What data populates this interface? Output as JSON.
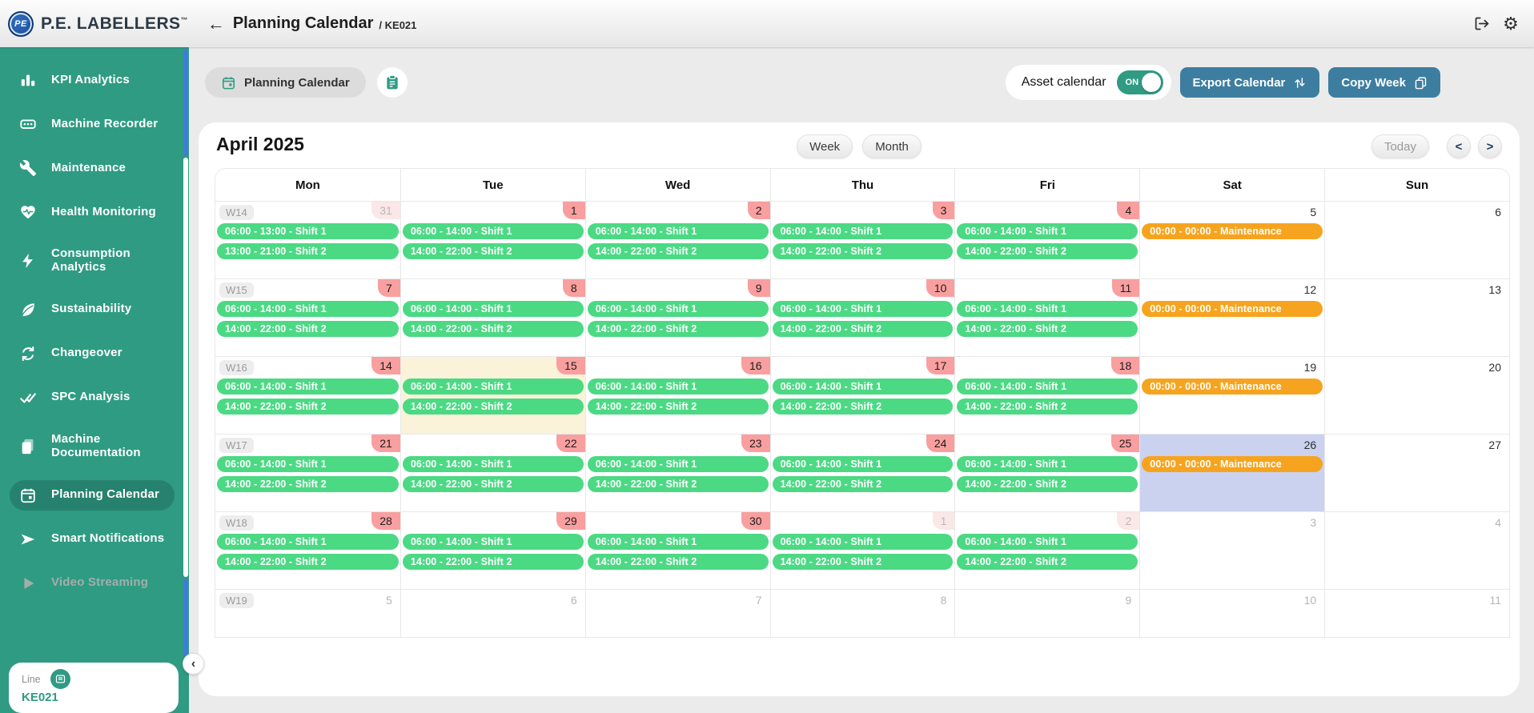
{
  "topbar": {
    "logo_text": "PE",
    "brand": "P.E. LABELLERS",
    "trademark": "™",
    "back_arrow": "←",
    "title": "Planning Calendar",
    "machine_code": "/ KE021"
  },
  "sidebar": {
    "items": [
      {
        "label": "KPI Analytics",
        "icon": "bar-chart"
      },
      {
        "label": "Machine Recorder",
        "icon": "recorder"
      },
      {
        "label": "Maintenance",
        "icon": "wrench"
      },
      {
        "label": "Health Monitoring",
        "icon": "heart-pulse"
      },
      {
        "label": "Consumption Analytics",
        "icon": "bolt"
      },
      {
        "label": "Sustainability",
        "icon": "leaf"
      },
      {
        "label": "Changeover",
        "icon": "cycle"
      },
      {
        "label": "SPC Analysis",
        "icon": "double-check"
      },
      {
        "label": "Machine Documentation",
        "icon": "documents"
      },
      {
        "label": "Planning Calendar",
        "icon": "calendar",
        "active": true
      },
      {
        "label": "Smart Notifications",
        "icon": "send"
      },
      {
        "label": "Video Streaming",
        "icon": "play",
        "disabled": true
      }
    ],
    "collapse_arrow": "‹",
    "line_card": {
      "label": "Line",
      "value": "KE021",
      "icon": "list"
    }
  },
  "toolbar": {
    "tab_label": "Planning Calendar",
    "asset_calendar_label": "Asset calendar",
    "toggle_state": "ON",
    "export_label": "Export Calendar",
    "copy_week_label": "Copy Week"
  },
  "calendar": {
    "title": "April 2025",
    "week_label": "Week",
    "month_label": "Month",
    "today_label": "Today",
    "prev_label": "<",
    "next_label": ">",
    "day_headers": [
      "Mon",
      "Tue",
      "Wed",
      "Thu",
      "Fri",
      "Sat",
      "Sun"
    ],
    "weeks": [
      {
        "label": "W14",
        "days": [
          {
            "num": "31",
            "badge": "faded",
            "events": [
              {
                "label": "06:00 - 13:00 - Shift 1",
                "type": "shift"
              },
              {
                "label": "13:00 - 21:00 - Shift 2",
                "type": "shift"
              }
            ]
          },
          {
            "num": "1",
            "badge": "red",
            "events": [
              {
                "label": "06:00 - 14:00 - Shift 1",
                "type": "shift"
              },
              {
                "label": "14:00 - 22:00 - Shift 2",
                "type": "shift"
              }
            ]
          },
          {
            "num": "2",
            "badge": "red",
            "events": [
              {
                "label": "06:00 - 14:00 - Shift 1",
                "type": "shift"
              },
              {
                "label": "14:00 - 22:00 - Shift 2",
                "type": "shift"
              }
            ]
          },
          {
            "num": "3",
            "badge": "red",
            "events": [
              {
                "label": "06:00 - 14:00 - Shift 1",
                "type": "shift"
              },
              {
                "label": "14:00 - 22:00 - Shift 2",
                "type": "shift"
              }
            ]
          },
          {
            "num": "4",
            "badge": "red",
            "events": [
              {
                "label": "06:00 - 14:00 - Shift 1",
                "type": "shift"
              },
              {
                "label": "14:00 - 22:00 - Shift 2",
                "type": "shift"
              }
            ]
          },
          {
            "num": "5",
            "badge": "plain",
            "events": [
              {
                "label": "00:00 - 00:00 - Maintenance",
                "type": "maintenance"
              }
            ]
          },
          {
            "num": "6",
            "badge": "plain",
            "events": []
          }
        ]
      },
      {
        "label": "W15",
        "days": [
          {
            "num": "7",
            "badge": "red",
            "events": [
              {
                "label": "06:00 - 14:00 - Shift 1",
                "type": "shift"
              },
              {
                "label": "14:00 - 22:00 - Shift 2",
                "type": "shift"
              }
            ]
          },
          {
            "num": "8",
            "badge": "red",
            "events": [
              {
                "label": "06:00 - 14:00 - Shift 1",
                "type": "shift"
              },
              {
                "label": "14:00 - 22:00 - Shift 2",
                "type": "shift"
              }
            ]
          },
          {
            "num": "9",
            "badge": "red",
            "events": [
              {
                "label": "06:00 - 14:00 - Shift 1",
                "type": "shift"
              },
              {
                "label": "14:00 - 22:00 - Shift 2",
                "type": "shift"
              }
            ]
          },
          {
            "num": "10",
            "badge": "red",
            "events": [
              {
                "label": "06:00 - 14:00 - Shift 1",
                "type": "shift"
              },
              {
                "label": "14:00 - 22:00 - Shift 2",
                "type": "shift"
              }
            ]
          },
          {
            "num": "11",
            "badge": "red",
            "events": [
              {
                "label": "06:00 - 14:00 - Shift 1",
                "type": "shift"
              },
              {
                "label": "14:00 - 22:00 - Shift 2",
                "type": "shift"
              }
            ]
          },
          {
            "num": "12",
            "badge": "plain",
            "events": [
              {
                "label": "00:00 - 00:00 - Maintenance",
                "type": "maintenance"
              }
            ]
          },
          {
            "num": "13",
            "badge": "plain",
            "events": []
          }
        ]
      },
      {
        "label": "W16",
        "days": [
          {
            "num": "14",
            "badge": "red",
            "events": [
              {
                "label": "06:00 - 14:00 - Shift 1",
                "type": "shift"
              },
              {
                "label": "14:00 - 22:00 - Shift 2",
                "type": "shift"
              }
            ]
          },
          {
            "num": "15",
            "badge": "red",
            "bg": "today",
            "events": [
              {
                "label": "06:00 - 14:00 - Shift 1",
                "type": "shift"
              },
              {
                "label": "14:00 - 22:00 - Shift 2",
                "type": "shift"
              }
            ]
          },
          {
            "num": "16",
            "badge": "red",
            "events": [
              {
                "label": "06:00 - 14:00 - Shift 1",
                "type": "shift"
              },
              {
                "label": "14:00 - 22:00 - Shift 2",
                "type": "shift"
              }
            ]
          },
          {
            "num": "17",
            "badge": "red",
            "events": [
              {
                "label": "06:00 - 14:00 - Shift 1",
                "type": "shift"
              },
              {
                "label": "14:00 - 22:00 - Shift 2",
                "type": "shift"
              }
            ]
          },
          {
            "num": "18",
            "badge": "red",
            "events": [
              {
                "label": "06:00 - 14:00 - Shift 1",
                "type": "shift"
              },
              {
                "label": "14:00 - 22:00 - Shift 2",
                "type": "shift"
              }
            ]
          },
          {
            "num": "19",
            "badge": "plain",
            "events": [
              {
                "label": "00:00 - 00:00 - Maintenance",
                "type": "maintenance"
              }
            ]
          },
          {
            "num": "20",
            "badge": "plain",
            "events": []
          }
        ]
      },
      {
        "label": "W17",
        "days": [
          {
            "num": "21",
            "badge": "red",
            "events": [
              {
                "label": "06:00 - 14:00 - Shift 1",
                "type": "shift"
              },
              {
                "label": "14:00 - 22:00 - Shift 2",
                "type": "shift"
              }
            ]
          },
          {
            "num": "22",
            "badge": "red",
            "events": [
              {
                "label": "06:00 - 14:00 - Shift 1",
                "type": "shift"
              },
              {
                "label": "14:00 - 22:00 - Shift 2",
                "type": "shift"
              }
            ]
          },
          {
            "num": "23",
            "badge": "red",
            "events": [
              {
                "label": "06:00 - 14:00 - Shift 1",
                "type": "shift"
              },
              {
                "label": "14:00 - 22:00 - Shift 2",
                "type": "shift"
              }
            ]
          },
          {
            "num": "24",
            "badge": "red",
            "events": [
              {
                "label": "06:00 - 14:00 - Shift 1",
                "type": "shift"
              },
              {
                "label": "14:00 - 22:00 - Shift 2",
                "type": "shift"
              }
            ]
          },
          {
            "num": "25",
            "badge": "red",
            "events": [
              {
                "label": "06:00 - 14:00 - Shift 1",
                "type": "shift"
              },
              {
                "label": "14:00 - 22:00 - Shift 2",
                "type": "shift"
              }
            ]
          },
          {
            "num": "26",
            "badge": "plain",
            "bg": "selected",
            "events": [
              {
                "label": "00:00 - 00:00 - Maintenance",
                "type": "maintenance"
              }
            ]
          },
          {
            "num": "27",
            "badge": "plain",
            "events": []
          }
        ]
      },
      {
        "label": "W18",
        "days": [
          {
            "num": "28",
            "badge": "red",
            "events": [
              {
                "label": "06:00 - 14:00 - Shift 1",
                "type": "shift"
              },
              {
                "label": "14:00 - 22:00 - Shift 2",
                "type": "shift"
              }
            ]
          },
          {
            "num": "29",
            "badge": "red",
            "events": [
              {
                "label": "06:00 - 14:00 - Shift 1",
                "type": "shift"
              },
              {
                "label": "14:00 - 22:00 - Shift 2",
                "type": "shift"
              }
            ]
          },
          {
            "num": "30",
            "badge": "red",
            "events": [
              {
                "label": "06:00 - 14:00 - Shift 1",
                "type": "shift"
              },
              {
                "label": "14:00 - 22:00 - Shift 2",
                "type": "shift"
              }
            ]
          },
          {
            "num": "1",
            "badge": "faded",
            "events": [
              {
                "label": "06:00 - 14:00 - Shift 1",
                "type": "shift"
              },
              {
                "label": "14:00 - 22:00 - Shift 2",
                "type": "shift"
              }
            ]
          },
          {
            "num": "2",
            "badge": "faded",
            "events": [
              {
                "label": "06:00 - 14:00 - Shift 1",
                "type": "shift"
              },
              {
                "label": "14:00 - 22:00 - Shift 2",
                "type": "shift"
              }
            ]
          },
          {
            "num": "3",
            "badge": "muted",
            "events": []
          },
          {
            "num": "4",
            "badge": "muted",
            "events": []
          }
        ]
      },
      {
        "label": "W19",
        "compact": true,
        "days": [
          {
            "num": "5",
            "badge": "muted",
            "events": []
          },
          {
            "num": "6",
            "badge": "muted",
            "events": []
          },
          {
            "num": "7",
            "badge": "muted",
            "events": []
          },
          {
            "num": "8",
            "badge": "muted",
            "events": []
          },
          {
            "num": "9",
            "badge": "muted",
            "events": []
          },
          {
            "num": "10",
            "badge": "muted",
            "events": []
          },
          {
            "num": "11",
            "badge": "muted",
            "events": []
          }
        ]
      }
    ]
  },
  "colors": {
    "accent": "#2f9b83",
    "sidebar_active": "#26826e",
    "event_shift": "#4cd984",
    "event_maintenance": "#f6a41f",
    "badge_red": "#f99f9f",
    "badge_faded": "#fbe7e7",
    "button_blue": "#3d7ea0",
    "scroll_blue": "#3f7cd9",
    "cell_today": "#faf3da",
    "cell_selected": "#cbd2ef",
    "logo_blue": "#1b4f9c"
  }
}
